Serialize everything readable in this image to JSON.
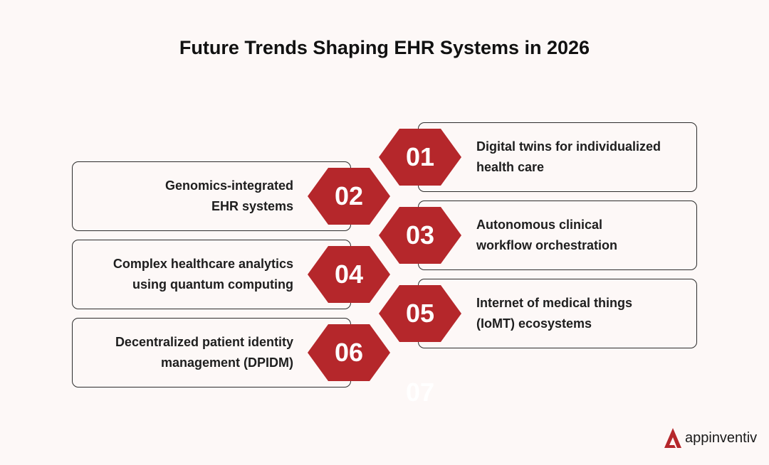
{
  "title": "Future Trends Shaping EHR Systems in 2026",
  "accent_color": "#b5272b",
  "items": [
    {
      "number": "01",
      "line1": "Digital twins for individualized",
      "line2": "health care"
    },
    {
      "number": "02",
      "line1": "Genomics-integrated",
      "line2": "EHR systems"
    },
    {
      "number": "03",
      "line1": "Autonomous clinical",
      "line2": "workflow orchestration"
    },
    {
      "number": "04",
      "line1": "Complex healthcare analytics",
      "line2": "using quantum computing"
    },
    {
      "number": "05",
      "line1": "Internet of medical things",
      "line2": "(IoMT) ecosystems"
    },
    {
      "number": "06",
      "line1": "Decentralized patient identity",
      "line2": "management (DPIDM)"
    }
  ],
  "faded_number": "07",
  "brand": {
    "name": "appinventiv",
    "icon": "appinventiv-logo-icon"
  }
}
